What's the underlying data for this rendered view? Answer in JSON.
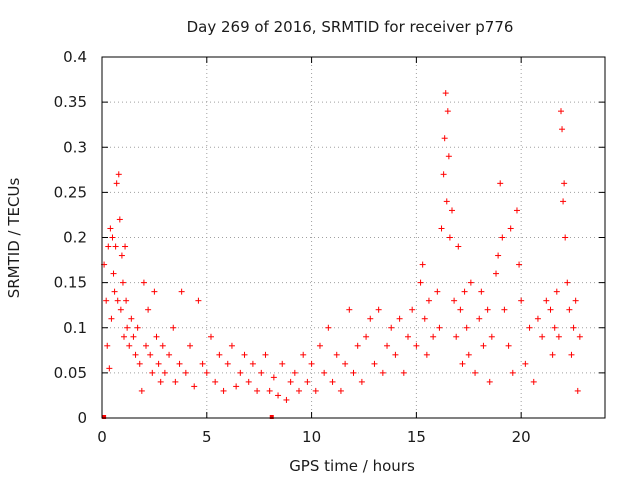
{
  "chart_data": {
    "type": "scatter",
    "title": "Day 269 of 2016, SRMTID for receiver p776",
    "xlabel": "GPS time / hours",
    "ylabel": "SRMTID / TECUs",
    "xlim": [
      0,
      24
    ],
    "ylim": [
      0,
      0.4
    ],
    "xticks": [
      0,
      5,
      10,
      15,
      20
    ],
    "xtick_labels": [
      "0",
      "5",
      "10",
      "15",
      "20"
    ],
    "yticks": [
      0,
      0.05,
      0.1,
      0.15,
      0.2,
      0.25,
      0.3,
      0.35,
      0.4
    ],
    "ytick_labels": [
      "0",
      "0.05",
      "0.1",
      "0.15",
      "0.2",
      "0.25",
      "0.3",
      "0.35",
      "0.4"
    ],
    "grid": true,
    "marker": "+",
    "marker_color": "#ff0000",
    "zero_markers_x": [
      0.1,
      8.1
    ],
    "series": [
      {
        "name": "SRMTID",
        "points": [
          [
            0.1,
            0.17
          ],
          [
            0.2,
            0.13
          ],
          [
            0.25,
            0.08
          ],
          [
            0.3,
            0.19
          ],
          [
            0.35,
            0.055
          ],
          [
            0.4,
            0.21
          ],
          [
            0.45,
            0.11
          ],
          [
            0.5,
            0.2
          ],
          [
            0.55,
            0.16
          ],
          [
            0.6,
            0.14
          ],
          [
            0.65,
            0.19
          ],
          [
            0.7,
            0.26
          ],
          [
            0.75,
            0.13
          ],
          [
            0.8,
            0.27
          ],
          [
            0.85,
            0.22
          ],
          [
            0.9,
            0.12
          ],
          [
            0.95,
            0.18
          ],
          [
            1.0,
            0.15
          ],
          [
            1.05,
            0.09
          ],
          [
            1.1,
            0.19
          ],
          [
            1.15,
            0.13
          ],
          [
            1.2,
            0.1
          ],
          [
            1.3,
            0.08
          ],
          [
            1.4,
            0.11
          ],
          [
            1.5,
            0.09
          ],
          [
            1.6,
            0.07
          ],
          [
            1.7,
            0.1
          ],
          [
            1.8,
            0.06
          ],
          [
            1.9,
            0.03
          ],
          [
            2.0,
            0.15
          ],
          [
            2.1,
            0.08
          ],
          [
            2.2,
            0.12
          ],
          [
            2.3,
            0.07
          ],
          [
            2.4,
            0.05
          ],
          [
            2.5,
            0.14
          ],
          [
            2.6,
            0.09
          ],
          [
            2.7,
            0.06
          ],
          [
            2.8,
            0.04
          ],
          [
            2.9,
            0.08
          ],
          [
            3.0,
            0.05
          ],
          [
            3.2,
            0.07
          ],
          [
            3.4,
            0.1
          ],
          [
            3.5,
            0.04
          ],
          [
            3.7,
            0.06
          ],
          [
            3.8,
            0.14
          ],
          [
            4.0,
            0.05
          ],
          [
            4.2,
            0.08
          ],
          [
            4.4,
            0.035
          ],
          [
            4.6,
            0.13
          ],
          [
            4.8,
            0.06
          ],
          [
            5.0,
            0.05
          ],
          [
            5.2,
            0.09
          ],
          [
            5.4,
            0.04
          ],
          [
            5.6,
            0.07
          ],
          [
            5.8,
            0.03
          ],
          [
            6.0,
            0.06
          ],
          [
            6.2,
            0.08
          ],
          [
            6.4,
            0.035
          ],
          [
            6.6,
            0.05
          ],
          [
            6.8,
            0.07
          ],
          [
            7.0,
            0.04
          ],
          [
            7.2,
            0.06
          ],
          [
            7.4,
            0.03
          ],
          [
            7.6,
            0.05
          ],
          [
            7.8,
            0.07
          ],
          [
            8.0,
            0.03
          ],
          [
            8.2,
            0.045
          ],
          [
            8.4,
            0.025
          ],
          [
            8.6,
            0.06
          ],
          [
            8.8,
            0.02
          ],
          [
            9.0,
            0.04
          ],
          [
            9.2,
            0.05
          ],
          [
            9.4,
            0.03
          ],
          [
            9.6,
            0.07
          ],
          [
            9.8,
            0.04
          ],
          [
            10.0,
            0.06
          ],
          [
            10.2,
            0.03
          ],
          [
            10.4,
            0.08
          ],
          [
            10.6,
            0.05
          ],
          [
            10.8,
            0.1
          ],
          [
            11.0,
            0.04
          ],
          [
            11.2,
            0.07
          ],
          [
            11.4,
            0.03
          ],
          [
            11.6,
            0.06
          ],
          [
            11.8,
            0.12
          ],
          [
            12.0,
            0.05
          ],
          [
            12.2,
            0.08
          ],
          [
            12.4,
            0.04
          ],
          [
            12.6,
            0.09
          ],
          [
            12.8,
            0.11
          ],
          [
            13.0,
            0.06
          ],
          [
            13.2,
            0.12
          ],
          [
            13.4,
            0.05
          ],
          [
            13.6,
            0.08
          ],
          [
            13.8,
            0.1
          ],
          [
            14.0,
            0.07
          ],
          [
            14.2,
            0.11
          ],
          [
            14.4,
            0.05
          ],
          [
            14.6,
            0.09
          ],
          [
            14.8,
            0.12
          ],
          [
            15.0,
            0.08
          ],
          [
            15.2,
            0.15
          ],
          [
            15.3,
            0.17
          ],
          [
            15.4,
            0.11
          ],
          [
            15.5,
            0.07
          ],
          [
            15.6,
            0.13
          ],
          [
            15.8,
            0.09
          ],
          [
            16.0,
            0.14
          ],
          [
            16.1,
            0.1
          ],
          [
            16.2,
            0.21
          ],
          [
            16.3,
            0.27
          ],
          [
            16.35,
            0.31
          ],
          [
            16.4,
            0.36
          ],
          [
            16.45,
            0.24
          ],
          [
            16.5,
            0.34
          ],
          [
            16.55,
            0.29
          ],
          [
            16.6,
            0.2
          ],
          [
            16.7,
            0.23
          ],
          [
            16.8,
            0.13
          ],
          [
            16.9,
            0.09
          ],
          [
            17.0,
            0.19
          ],
          [
            17.1,
            0.12
          ],
          [
            17.2,
            0.06
          ],
          [
            17.3,
            0.14
          ],
          [
            17.4,
            0.1
          ],
          [
            17.5,
            0.07
          ],
          [
            17.6,
            0.15
          ],
          [
            17.8,
            0.05
          ],
          [
            18.0,
            0.11
          ],
          [
            18.1,
            0.14
          ],
          [
            18.2,
            0.08
          ],
          [
            18.4,
            0.12
          ],
          [
            18.5,
            0.04
          ],
          [
            18.6,
            0.09
          ],
          [
            18.8,
            0.16
          ],
          [
            18.9,
            0.18
          ],
          [
            19.0,
            0.26
          ],
          [
            19.1,
            0.2
          ],
          [
            19.2,
            0.12
          ],
          [
            19.4,
            0.08
          ],
          [
            19.5,
            0.21
          ],
          [
            19.6,
            0.05
          ],
          [
            19.8,
            0.23
          ],
          [
            19.9,
            0.17
          ],
          [
            20.0,
            0.13
          ],
          [
            20.2,
            0.06
          ],
          [
            20.4,
            0.1
          ],
          [
            20.6,
            0.04
          ],
          [
            20.8,
            0.11
          ],
          [
            21.0,
            0.09
          ],
          [
            21.2,
            0.13
          ],
          [
            21.4,
            0.12
          ],
          [
            21.5,
            0.07
          ],
          [
            21.6,
            0.1
          ],
          [
            21.7,
            0.14
          ],
          [
            21.8,
            0.09
          ],
          [
            21.9,
            0.34
          ],
          [
            21.95,
            0.32
          ],
          [
            22.0,
            0.24
          ],
          [
            22.05,
            0.26
          ],
          [
            22.1,
            0.2
          ],
          [
            22.2,
            0.15
          ],
          [
            22.3,
            0.12
          ],
          [
            22.4,
            0.07
          ],
          [
            22.5,
            0.1
          ],
          [
            22.6,
            0.13
          ],
          [
            22.7,
            0.03
          ],
          [
            22.8,
            0.09
          ]
        ]
      }
    ]
  }
}
